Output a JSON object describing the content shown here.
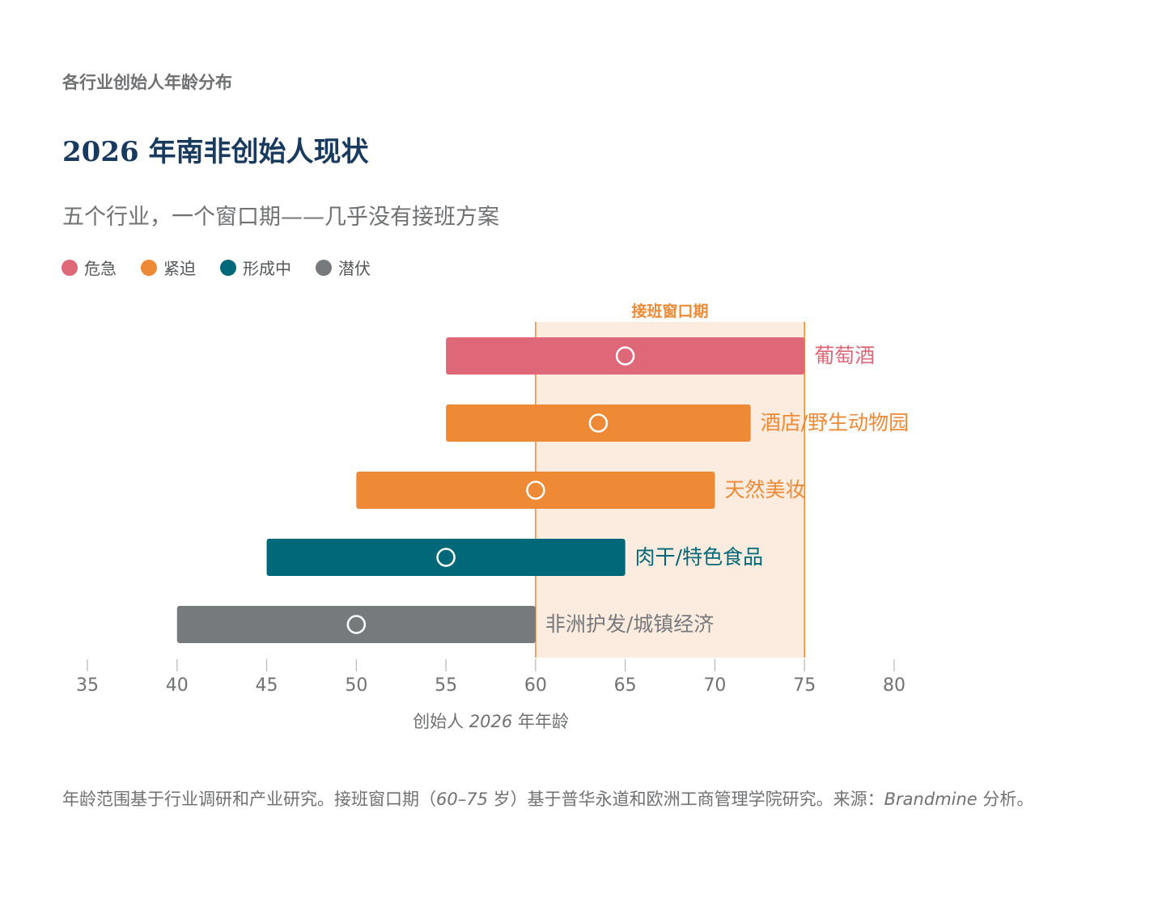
{
  "header": {
    "eyebrow": "各行业创始人年龄分布",
    "title": "2026 年南非创始人现状",
    "subtitle": "五个行业，一个窗口期——几乎没有接班方案"
  },
  "legend": [
    {
      "label": "危急",
      "color": "#de6778"
    },
    {
      "label": "紧迫",
      "color": "#ee8a35"
    },
    {
      "label": "形成中",
      "color": "#006878"
    },
    {
      "label": "潜伏",
      "color": "#767a7c"
    }
  ],
  "chart_data": {
    "type": "range-bar",
    "window": {
      "label": "接班窗口期",
      "from": 60,
      "to": 75
    },
    "xlim": [
      35,
      80
    ],
    "xticks": [
      35,
      40,
      45,
      50,
      55,
      60,
      65,
      70,
      75,
      80
    ],
    "xlabel": {
      "prefix": "创始人 ",
      "year": "2026",
      "suffix": " 年年龄"
    },
    "series": [
      {
        "name": "葡萄酒",
        "min": 55,
        "max": 75,
        "marker": 65,
        "status": "危急",
        "color": "#de6778"
      },
      {
        "name": "酒店/野生动物园",
        "min": 55,
        "max": 72,
        "marker": 63.5,
        "status": "紧迫",
        "color": "#ee8a35"
      },
      {
        "name": "天然美妆",
        "min": 50,
        "max": 70,
        "marker": 60,
        "status": "紧迫",
        "color": "#ee8a35"
      },
      {
        "name": "肉干/特色食品",
        "min": 45,
        "max": 65,
        "marker": 55,
        "status": "形成中",
        "color": "#006878"
      },
      {
        "name": "非洲护发/城镇经济",
        "min": 40,
        "max": 60,
        "marker": 50,
        "status": "潜伏",
        "color": "#767a7c"
      }
    ]
  },
  "footnote": {
    "p1": "年龄范围基于行业调研和产业研究。接班窗口期（",
    "range": "60–75",
    "p2": " 岁）基于普华永道和欧洲工商管理学院研究。来源：",
    "source": "Brandmine",
    "p3": " 分析。"
  }
}
